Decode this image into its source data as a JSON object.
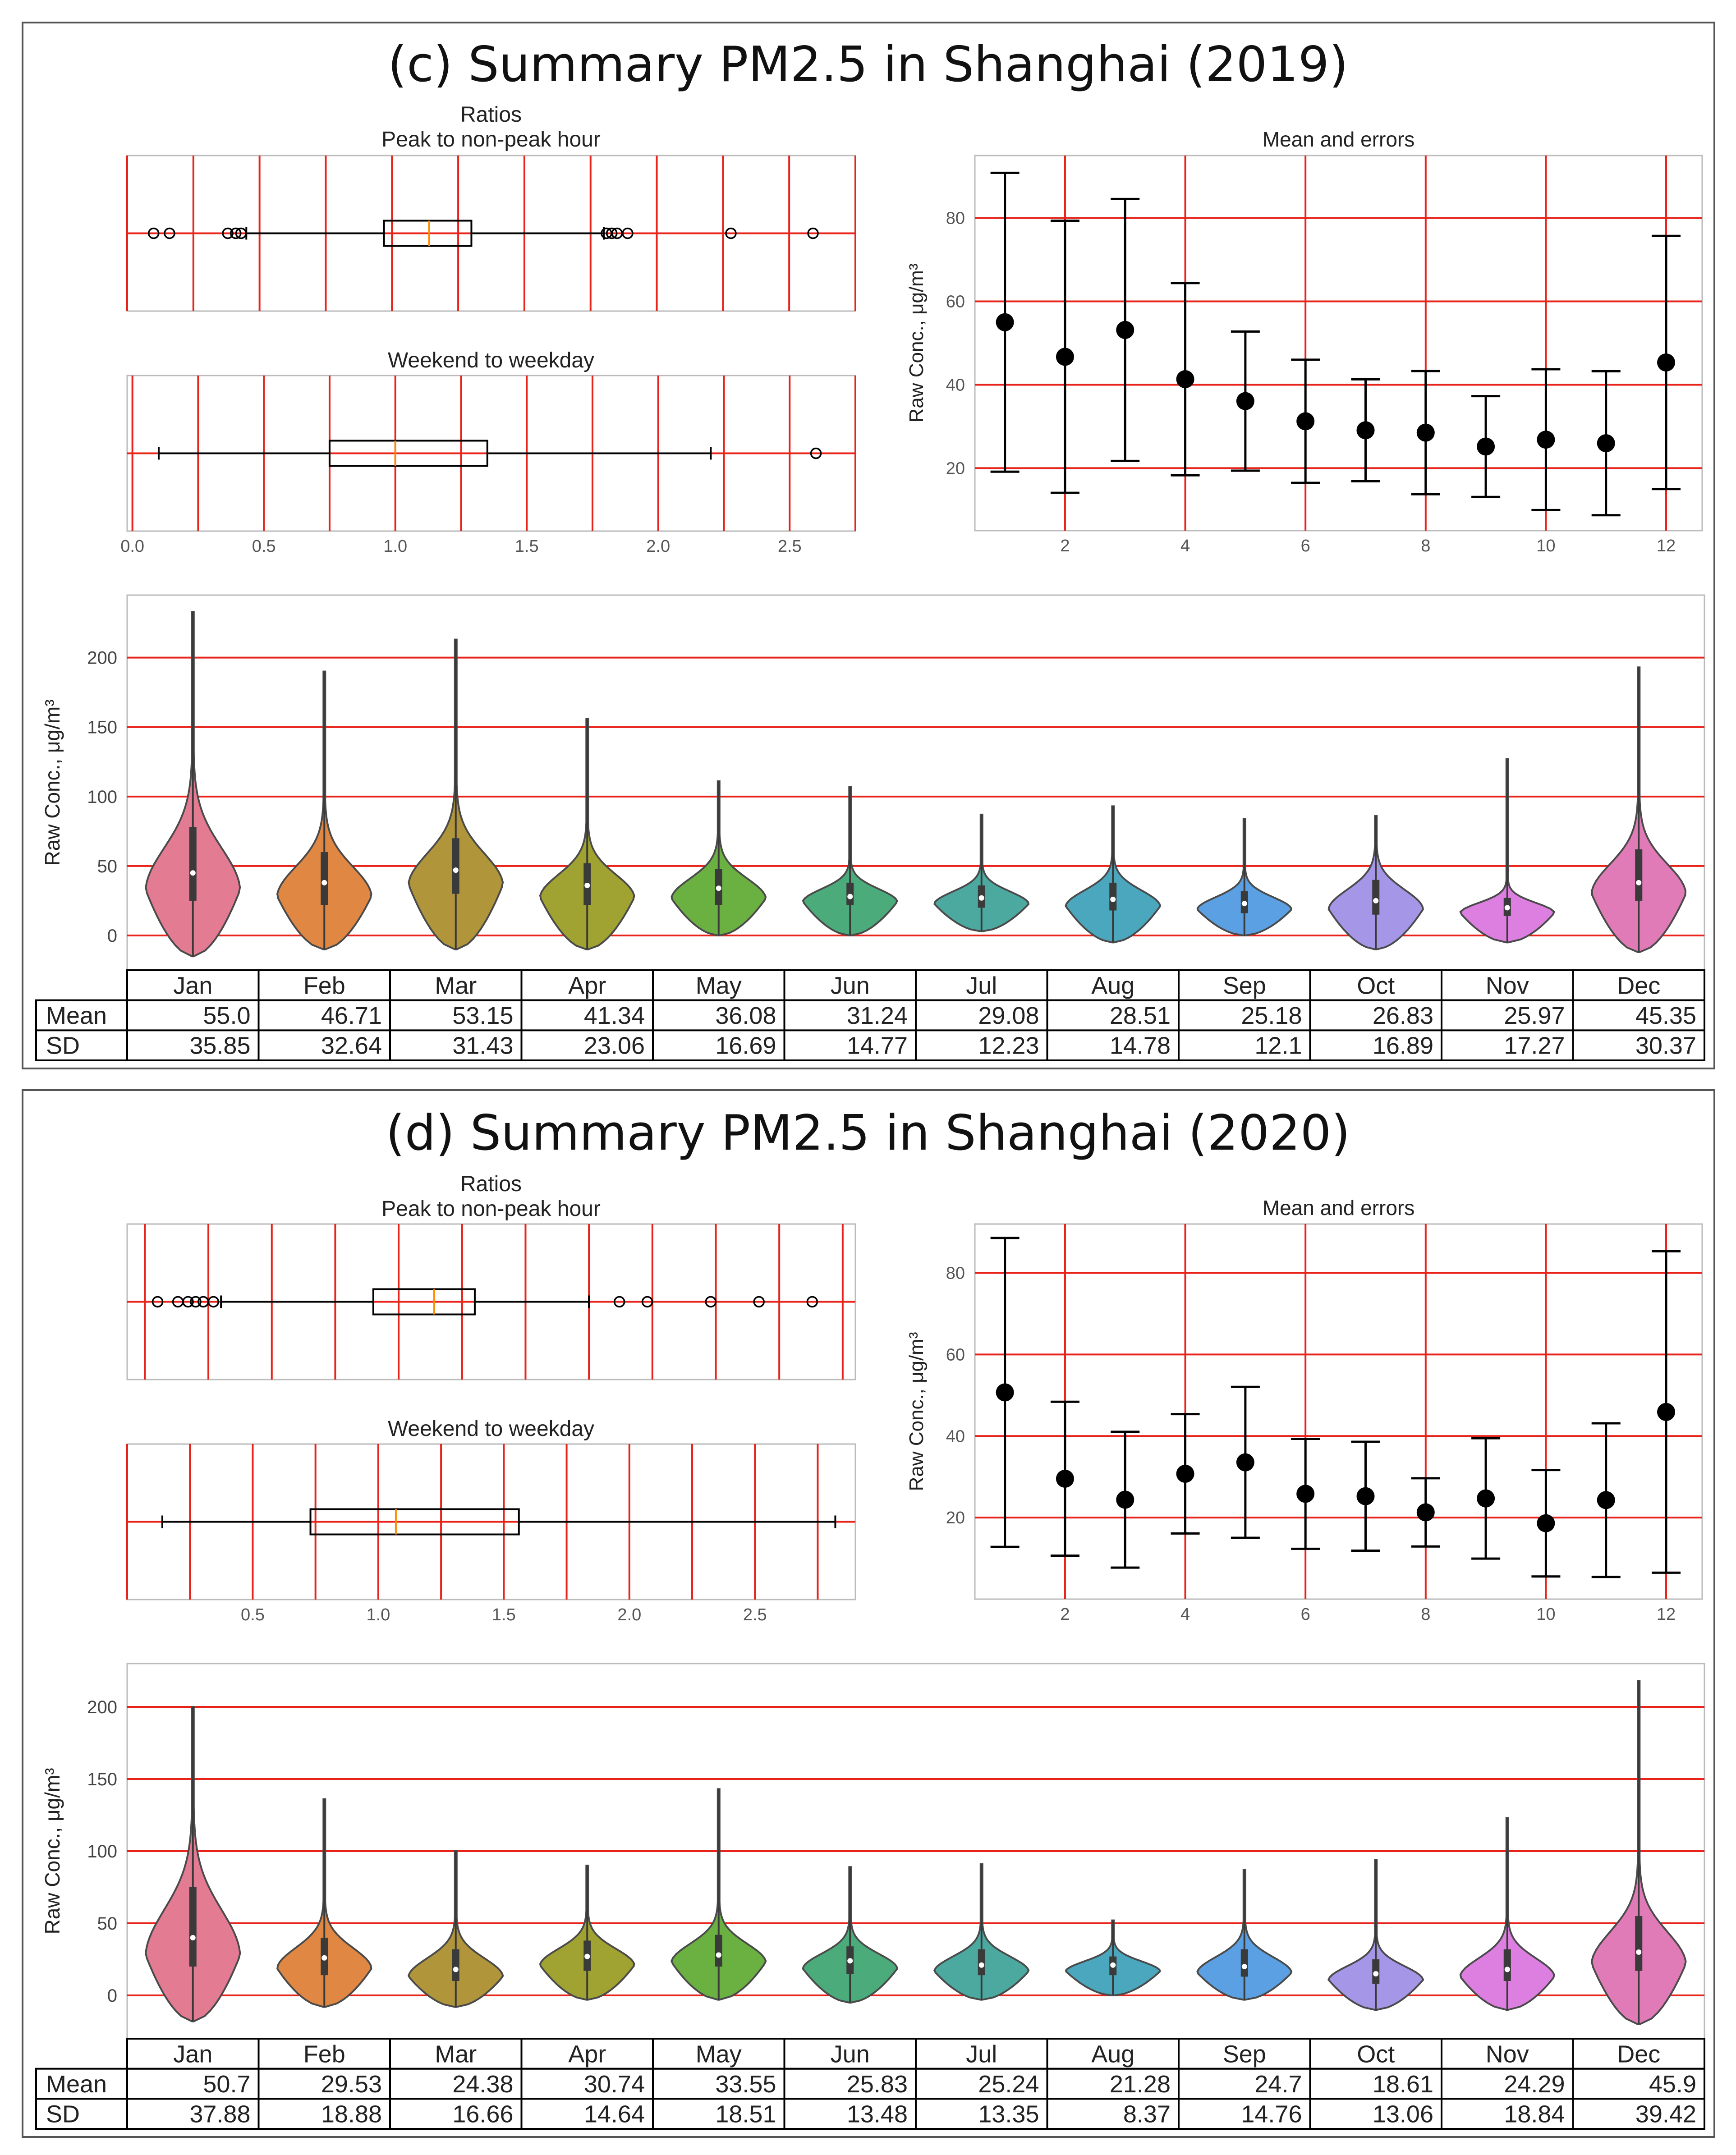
{
  "colors": {
    "grid": "#e8231a",
    "ink": "#222222",
    "median": "#ff8c00",
    "panel_border": "#555555",
    "violins": [
      "#e37b92",
      "#e08843",
      "#b0953b",
      "#a0a232",
      "#6ab142",
      "#4bab7a",
      "#4ba9a0",
      "#4aa7bd",
      "#5aa0e2",
      "#a696e8",
      "#dc7fe0",
      "#e07bb7"
    ]
  },
  "months": [
    "Jan",
    "Feb",
    "Mar",
    "Apr",
    "May",
    "Jun",
    "Jul",
    "Aug",
    "Sep",
    "Oct",
    "Nov",
    "Dec"
  ],
  "labels": {
    "ratios": "Ratios",
    "peak": "Peak to non-peak hour",
    "weekend": "Weekend to weekday",
    "mean_errors": "Mean and errors",
    "mean_row": "Mean",
    "sd_row": "SD"
  },
  "chart_data": [
    {
      "panel": "c",
      "title": "(c) Summary PM2.5 in Shanghai (2019)",
      "peak_ratio_box": {
        "type": "box",
        "xlim": [
          0.0,
          2.75
        ],
        "whisker_low": 0.45,
        "q1": 0.97,
        "median": 1.14,
        "q3": 1.3,
        "whisker_high": 1.8,
        "outliers": [
          0.1,
          0.16,
          0.38,
          0.41,
          0.43,
          1.81,
          1.83,
          1.85,
          1.89,
          2.28,
          2.59
        ]
      },
      "weekend_ratio_box": {
        "type": "box",
        "xlim": [
          -0.02,
          2.75
        ],
        "whisker_low": 0.1,
        "q1": 0.75,
        "median": 1.0,
        "q3": 1.35,
        "whisker_high": 2.2,
        "outliers": [
          2.6
        ],
        "xticks": [
          "0.0",
          "0.5",
          "1.0",
          "1.5",
          "2.0",
          "2.5"
        ]
      },
      "mean_errors": {
        "type": "scatter",
        "title": "Mean and errors",
        "ylabel": "Raw Conc., μg/m³",
        "xlim": [
          0.5,
          12.6
        ],
        "ylim": [
          5,
          95
        ],
        "xticks": [
          "2",
          "4",
          "6",
          "8",
          "10",
          "12"
        ],
        "yticks": [
          "20",
          "40",
          "60",
          "80"
        ],
        "x": [
          1,
          2,
          3,
          4,
          5,
          6,
          7,
          8,
          9,
          10,
          11,
          12
        ],
        "mean": [
          55.0,
          46.71,
          53.15,
          41.34,
          36.08,
          31.24,
          29.08,
          28.51,
          25.18,
          26.83,
          25.97,
          45.35
        ],
        "sd": [
          35.85,
          32.64,
          31.43,
          23.06,
          16.69,
          14.77,
          12.23,
          14.78,
          12.1,
          16.89,
          17.27,
          30.37
        ]
      },
      "violin": {
        "type": "violin",
        "ylabel": "Raw Conc., μg/m³",
        "ylim": [
          -25,
          245
        ],
        "yticks": [
          "0",
          "50",
          "100",
          "150",
          "200"
        ],
        "categories": [
          "Jan",
          "Feb",
          "Mar",
          "Apr",
          "May",
          "Jun",
          "Jul",
          "Aug",
          "Sep",
          "Oct",
          "Nov",
          "Dec"
        ],
        "min": [
          -15,
          -10,
          -10,
          -10,
          0,
          0,
          3,
          -5,
          0,
          -10,
          -5,
          -12
        ],
        "max": [
          233,
          190,
          213,
          156,
          111,
          107,
          87,
          93,
          84,
          86,
          127,
          193
        ],
        "q1": [
          25,
          22,
          30,
          22,
          22,
          22,
          20,
          18,
          16,
          15,
          14,
          25
        ],
        "median": [
          45,
          38,
          47,
          36,
          34,
          28,
          27,
          26,
          23,
          25,
          20,
          38
        ],
        "q3": [
          78,
          60,
          70,
          52,
          48,
          38,
          36,
          38,
          32,
          40,
          27,
          62
        ]
      },
      "table": {
        "mean": [
          "55.0",
          "46.71",
          "53.15",
          "41.34",
          "36.08",
          "31.24",
          "29.08",
          "28.51",
          "25.18",
          "26.83",
          "25.97",
          "45.35"
        ],
        "sd": [
          "35.85",
          "32.64",
          "31.43",
          "23.06",
          "16.69",
          "14.77",
          "12.23",
          "14.78",
          "12.1",
          "16.89",
          "17.27",
          "30.37"
        ]
      }
    },
    {
      "panel": "d",
      "title": "(d) Summary PM2.5 in Shanghai (2020)",
      "peak_ratio_box": {
        "type": "box",
        "xlim": [
          0.18,
          3.05
        ],
        "whisker_low": 0.55,
        "q1": 1.15,
        "median": 1.39,
        "q3": 1.55,
        "whisker_high": 2.0,
        "outliers": [
          0.3,
          0.38,
          0.42,
          0.45,
          0.48,
          0.52,
          2.12,
          2.23,
          2.48,
          2.67,
          2.88
        ]
      },
      "weekend_ratio_box": {
        "type": "box",
        "xlim": [
          0.0,
          2.9
        ],
        "whisker_low": 0.14,
        "q1": 0.73,
        "median": 1.07,
        "q3": 1.56,
        "whisker_high": 2.82,
        "outliers": [],
        "xticks": [
          "0.5",
          "1.0",
          "1.5",
          "2.0",
          "2.5"
        ]
      },
      "mean_errors": {
        "type": "scatter",
        "title": "Mean and errors",
        "ylabel": "Raw Conc., μg/m³",
        "xlim": [
          0.5,
          12.6
        ],
        "ylim": [
          0,
          92
        ],
        "xticks": [
          "2",
          "4",
          "6",
          "8",
          "10",
          "12"
        ],
        "yticks": [
          "20",
          "40",
          "60",
          "80"
        ],
        "x": [
          1,
          2,
          3,
          4,
          5,
          6,
          7,
          8,
          9,
          10,
          11,
          12
        ],
        "mean": [
          50.7,
          29.53,
          24.38,
          30.74,
          33.55,
          25.83,
          25.24,
          21.28,
          24.7,
          18.61,
          24.29,
          45.9
        ],
        "sd": [
          37.88,
          18.88,
          16.66,
          14.64,
          18.51,
          13.48,
          13.35,
          8.37,
          14.76,
          13.06,
          18.84,
          39.42
        ]
      },
      "violin": {
        "type": "violin",
        "ylabel": "Raw Conc., μg/m³",
        "ylim": [
          -30,
          230
        ],
        "yticks": [
          "0",
          "50",
          "100",
          "150",
          "200"
        ],
        "categories": [
          "Jan",
          "Feb",
          "Mar",
          "Apr",
          "May",
          "Jun",
          "Jul",
          "Aug",
          "Sep",
          "Oct",
          "Nov",
          "Dec"
        ],
        "min": [
          -18,
          -8,
          -8,
          -3,
          -3,
          -5,
          -3,
          0,
          -3,
          -10,
          -10,
          -20
        ],
        "max": [
          200,
          136,
          100,
          90,
          143,
          89,
          91,
          52,
          87,
          94,
          123,
          218
        ],
        "q1": [
          20,
          14,
          10,
          17,
          20,
          15,
          14,
          14,
          13,
          8,
          10,
          17
        ],
        "median": [
          40,
          26,
          18,
          27,
          28,
          24,
          21,
          21,
          20,
          15,
          18,
          30
        ],
        "q3": [
          75,
          40,
          32,
          38,
          42,
          34,
          32,
          27,
          32,
          25,
          32,
          55
        ]
      },
      "table": {
        "mean": [
          "50.7",
          "29.53",
          "24.38",
          "30.74",
          "33.55",
          "25.83",
          "25.24",
          "21.28",
          "24.7",
          "18.61",
          "24.29",
          "45.9"
        ],
        "sd": [
          "37.88",
          "18.88",
          "16.66",
          "14.64",
          "18.51",
          "13.48",
          "13.35",
          "8.37",
          "14.76",
          "13.06",
          "18.84",
          "39.42"
        ]
      }
    }
  ]
}
